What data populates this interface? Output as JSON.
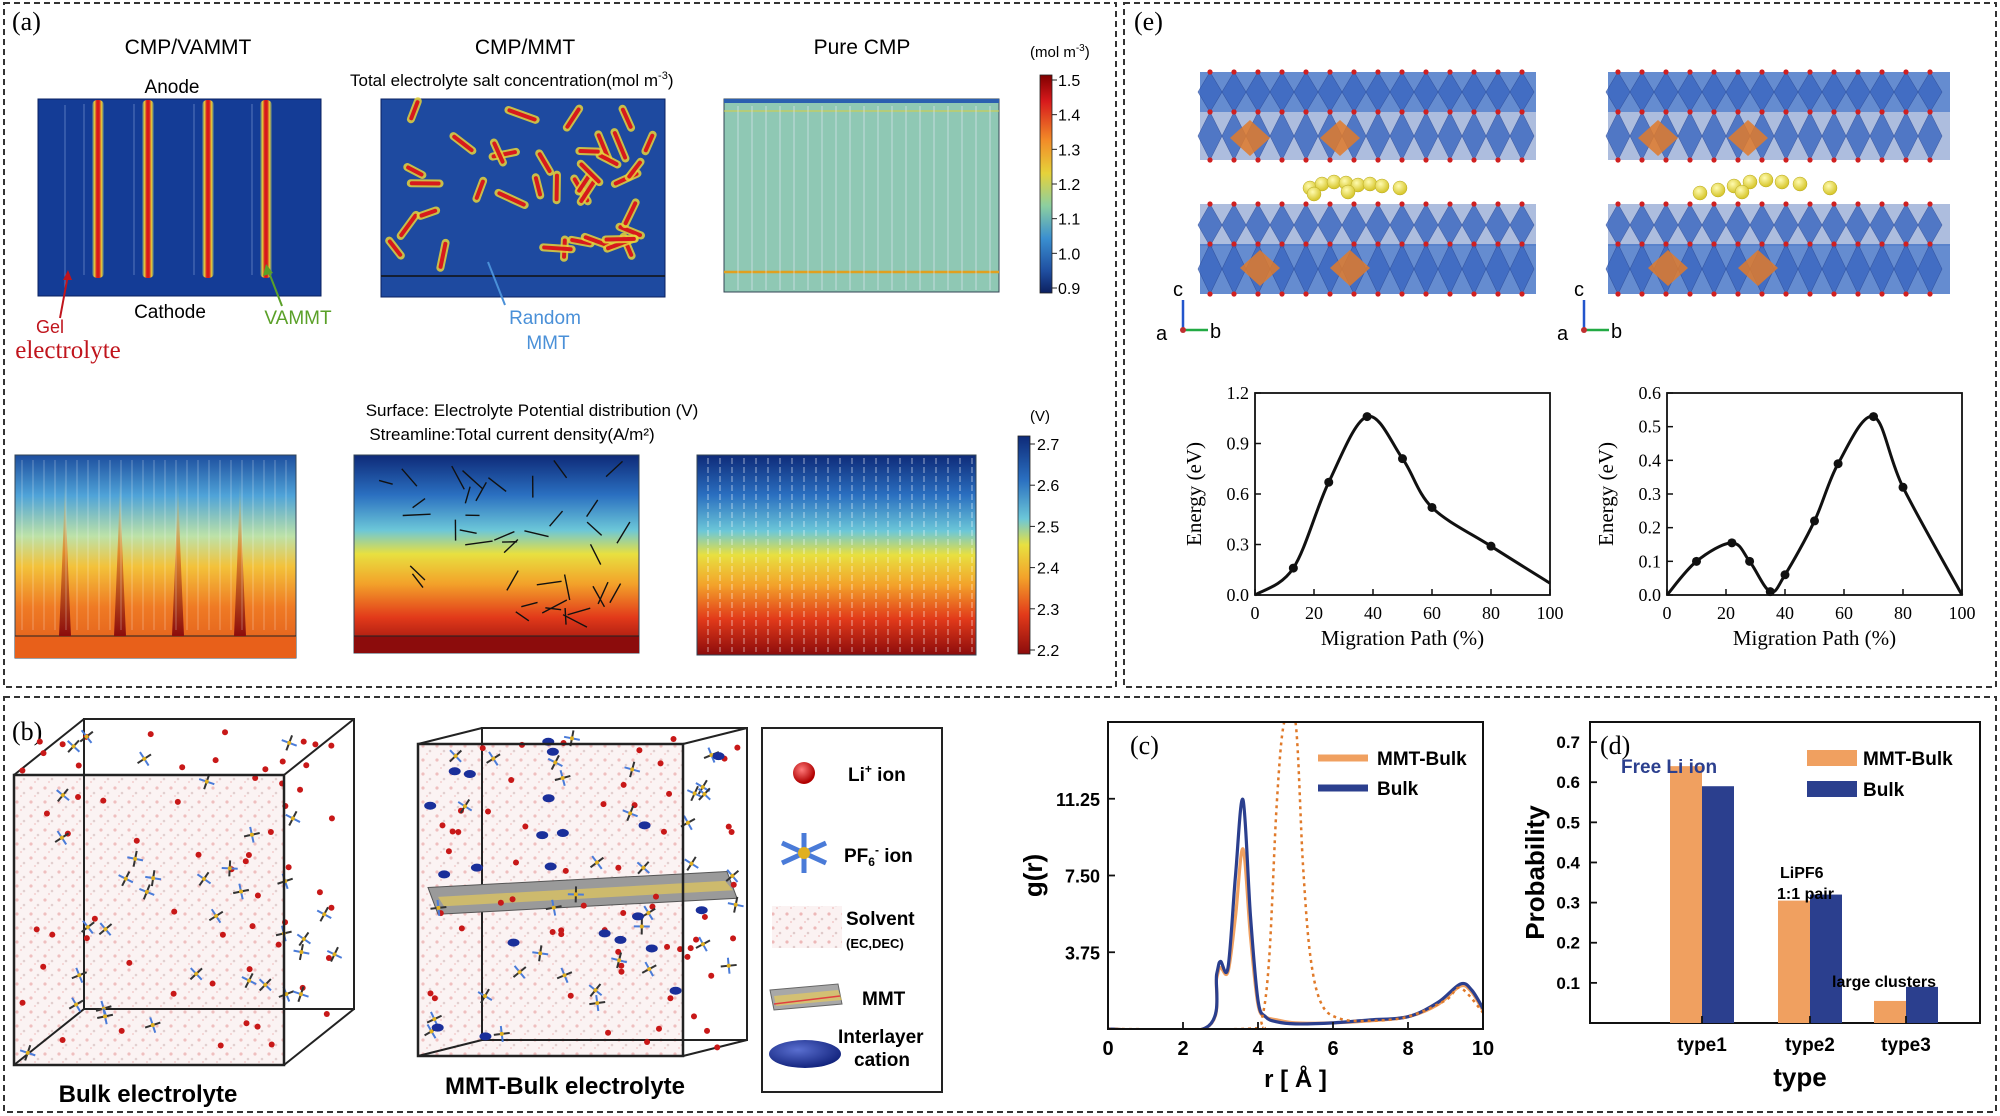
{
  "panel_a": {
    "label": "(a)",
    "col_titles": [
      "CMP/VAMMT",
      "CMP/MMT",
      "Pure CMP"
    ],
    "anode": "Anode",
    "cathode": "Cathode",
    "salt_title": "Total electrolyte salt concentration(mol m",
    "salt_title_sup": "-3",
    "salt_title_close": ")",
    "gel": "Gel",
    "electrolyte": "electrolyte",
    "vammt": "VAMMT",
    "random": "Random",
    "mmt": "MMT",
    "cb1_unit": "(mol m",
    "cb1_unit_sup": "-3",
    "cb1_unit_close": ")",
    "cb1_ticks": [
      "1.5",
      "1.4",
      "1.3",
      "1.2",
      "1.1",
      "1.0",
      "0.9"
    ],
    "surface_title": "Surface: Electrolyte Potential distribution (V)",
    "stream_title": "Streamline:Total current density(A/m²)",
    "cb2_unit": "(V)",
    "cb2_ticks": [
      "2.7",
      "2.6",
      "2.5",
      "2.4",
      "2.3",
      "2.2"
    ]
  },
  "panel_e": {
    "label": "(e)",
    "axis_c": "c",
    "axis_a": "a",
    "axis_b": "b",
    "chart_data": [
      {
        "type": "line",
        "xlabel": "Migration Path (%)",
        "ylabel": "Energy (eV)",
        "xlim": [
          0,
          100
        ],
        "ylim": [
          0,
          1.2
        ],
        "xticks": [
          "0",
          "20",
          "40",
          "60",
          "80",
          "100"
        ],
        "yticks": [
          "0.0",
          "0.3",
          "0.6",
          "0.9",
          "1.2"
        ],
        "x": [
          0,
          13,
          25,
          38,
          50,
          60,
          80,
          100
        ],
        "y": [
          0.0,
          0.16,
          0.67,
          1.06,
          0.81,
          0.52,
          0.29,
          0.07
        ]
      },
      {
        "type": "line",
        "xlabel": "Migration Path (%)",
        "ylabel": "Energy (eV)",
        "xlim": [
          0,
          100
        ],
        "ylim": [
          0,
          0.6
        ],
        "xticks": [
          "0",
          "20",
          "40",
          "60",
          "80",
          "100"
        ],
        "yticks": [
          "0.0",
          "0.1",
          "0.2",
          "0.3",
          "0.4",
          "0.5",
          "0.6"
        ],
        "x": [
          0,
          10,
          22,
          28,
          35,
          40,
          50,
          58,
          70,
          80,
          100
        ],
        "y": [
          0.0,
          0.1,
          0.155,
          0.1,
          0.01,
          0.06,
          0.22,
          0.39,
          0.53,
          0.32,
          0.0
        ]
      }
    ]
  },
  "panel_b": {
    "label": "(b)",
    "bulk_caption": "Bulk electrolyte",
    "mmt_caption": "MMT-Bulk electrolyte",
    "legend": {
      "li": "Li",
      "li_sup": "+",
      "li_tail": " ion",
      "pf": "PF",
      "pf_sub": "6",
      "pf_sup": "-",
      "pf_tail": " ion",
      "solvent": "Solvent",
      "solvent_sub": "(EC,DEC)",
      "mmt": "MMT",
      "interlayer": "Interlayer",
      "cation": "cation"
    }
  },
  "panel_c": {
    "label": "(c)",
    "chart_data": {
      "type": "line",
      "xlabel": "r [ Å ]",
      "ylabel": "g(r)",
      "xlim": [
        0,
        10
      ],
      "ylim": [
        0,
        15
      ],
      "xticks": [
        "0",
        "2",
        "4",
        "6",
        "8",
        "10"
      ],
      "yticks": [
        "3.75",
        "7.50",
        "11.25"
      ],
      "legend_position": "top-right",
      "series": [
        {
          "name": "MMT-Bulk",
          "color": "#f0a060",
          "x": [
            0,
            2.6,
            2.9,
            3.0,
            3.2,
            3.4,
            3.6,
            3.8,
            4.0,
            4.2,
            4.5,
            5.0,
            6.0,
            7.0,
            8.0,
            8.8,
            9.4,
            9.7,
            10
          ],
          "y": [
            0,
            0.05,
            2.5,
            3.0,
            2.8,
            5.5,
            8.8,
            4.5,
            1.2,
            0.6,
            0.45,
            0.3,
            0.3,
            0.4,
            0.6,
            1.2,
            2.1,
            1.8,
            0.9
          ]
        },
        {
          "name": "Bulk",
          "color": "#2b3f8e",
          "x": [
            0,
            2.6,
            2.9,
            3.0,
            3.2,
            3.4,
            3.6,
            3.8,
            4.0,
            4.2,
            4.5,
            5.0,
            6.0,
            7.0,
            8.0,
            8.8,
            9.4,
            9.7,
            10
          ],
          "y": [
            0,
            0.05,
            2.7,
            3.3,
            3.0,
            7.5,
            11.2,
            5.5,
            1.4,
            0.6,
            0.35,
            0.25,
            0.3,
            0.45,
            0.6,
            1.3,
            2.2,
            1.9,
            1.0
          ]
        },
        {
          "name": "MMT-Bulk (dotted)",
          "color": "#e07a2a",
          "x": [
            0,
            3.8,
            4.1,
            4.3,
            4.5,
            4.7,
            5.0,
            5.2,
            5.4,
            5.7,
            6.2,
            7.0,
            8.0,
            9.0,
            9.4,
            10
          ],
          "y": [
            0,
            0.02,
            0.5,
            3.5,
            11,
            15,
            15,
            8,
            3.5,
            1.2,
            0.5,
            0.4,
            0.6,
            1.4,
            2.0,
            0.8
          ]
        }
      ]
    }
  },
  "panel_d": {
    "label": "(d)",
    "free_li": "Free Li ion",
    "lipf6": "LiPF6",
    "pair": "1:1 pair",
    "large": "large clusters",
    "chart_data": {
      "type": "bar",
      "categories": [
        "type1",
        "type2",
        "type3"
      ],
      "xlabel": "type",
      "ylabel": "Probability",
      "ylim": [
        0,
        0.75
      ],
      "yticks": [
        "0.1",
        "0.2",
        "0.3",
        "0.4",
        "0.5",
        "0.6",
        "0.7"
      ],
      "legend_position": "top-right",
      "series": [
        {
          "name": "MMT-Bulk",
          "color": "#f0a060",
          "values": [
            0.64,
            0.305,
            0.055
          ]
        },
        {
          "name": "Bulk",
          "color": "#2b3f8e",
          "values": [
            0.59,
            0.32,
            0.09
          ]
        }
      ]
    }
  }
}
